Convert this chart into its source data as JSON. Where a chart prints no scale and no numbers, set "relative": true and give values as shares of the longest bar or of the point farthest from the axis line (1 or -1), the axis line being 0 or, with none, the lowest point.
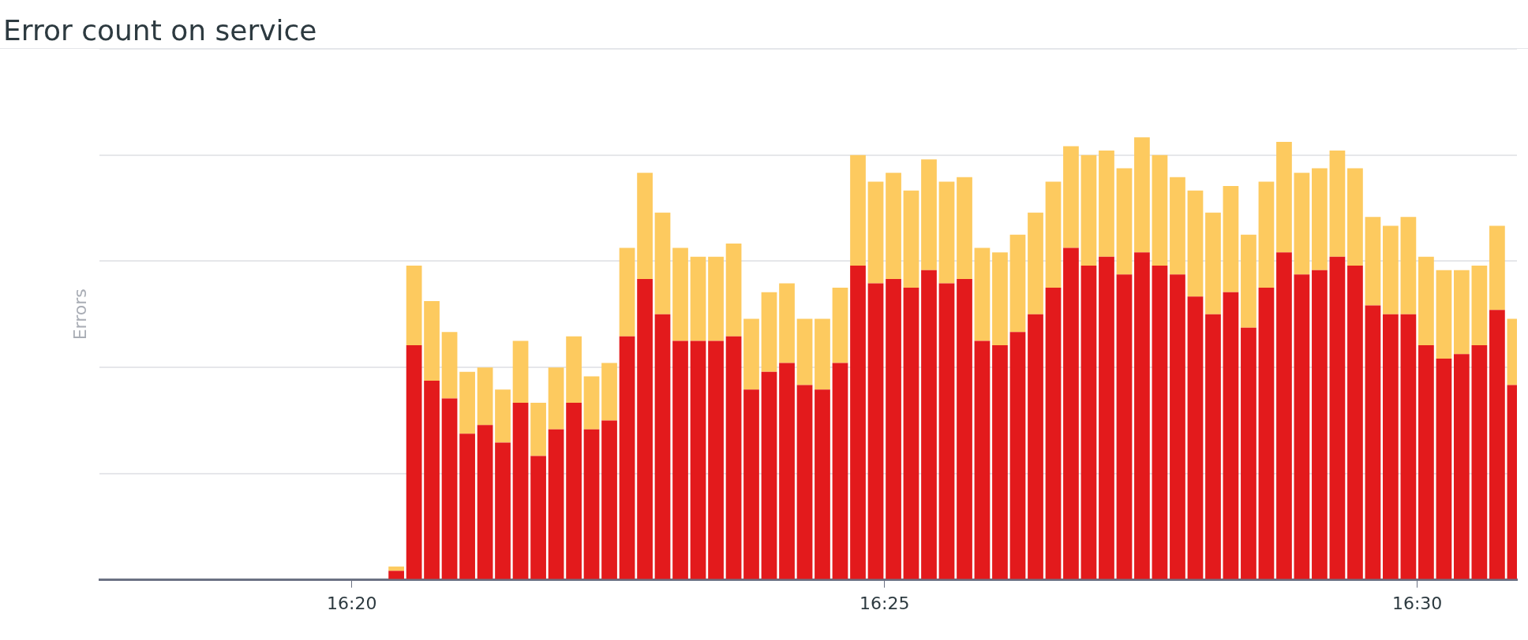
{
  "chart_data": {
    "type": "bar",
    "title": "Error count on service",
    "ylabel": "Errors",
    "relative": true,
    "stacked": true,
    "grid": "y",
    "legend": false,
    "xlim": [
      16.29389,
      16.5156
    ],
    "xticks": [
      {
        "value": 16.33333,
        "label": "16:20"
      },
      {
        "value": 16.41667,
        "label": "16:25"
      },
      {
        "value": 16.5,
        "label": "16:30"
      }
    ],
    "x": [
      16.34028,
      16.34306,
      16.34583,
      16.34861,
      16.35139,
      16.35417,
      16.35694,
      16.35972,
      16.3625,
      16.36528,
      16.36806,
      16.37083,
      16.37361,
      16.37639,
      16.37917,
      16.38194,
      16.38472,
      16.3875,
      16.39028,
      16.39306,
      16.39583,
      16.39861,
      16.40139,
      16.40417,
      16.40694,
      16.40972,
      16.4125,
      16.41528,
      16.41806,
      16.42083,
      16.42361,
      16.42639,
      16.42917,
      16.43194,
      16.43472,
      16.4375,
      16.44028,
      16.44306,
      16.44583,
      16.44861,
      16.45139,
      16.45417,
      16.45694,
      16.45972,
      16.4625,
      16.46528,
      16.46806,
      16.47083,
      16.47361,
      16.47639,
      16.47917,
      16.48194,
      16.48472,
      16.4875,
      16.49028,
      16.49306,
      16.49583,
      16.49861,
      16.50139,
      16.50417,
      16.50694,
      16.50972,
      16.5125,
      16.51528
    ],
    "series": [
      {
        "color": "#e31a1c",
        "values": [
          0.02,
          0.53,
          0.45,
          0.41,
          0.33,
          0.35,
          0.31,
          0.4,
          0.28,
          0.34,
          0.4,
          0.34,
          0.36,
          0.55,
          0.68,
          0.6,
          0.54,
          0.54,
          0.54,
          0.55,
          0.43,
          0.47,
          0.49,
          0.44,
          0.43,
          0.49,
          0.71,
          0.67,
          0.68,
          0.66,
          0.7,
          0.67,
          0.68,
          0.54,
          0.53,
          0.56,
          0.6,
          0.66,
          0.75,
          0.71,
          0.73,
          0.69,
          0.74,
          0.71,
          0.69,
          0.64,
          0.6,
          0.65,
          0.57,
          0.66,
          0.74,
          0.69,
          0.7,
          0.73,
          0.71,
          0.62,
          0.6,
          0.6,
          0.53,
          0.5,
          0.51,
          0.53,
          0.61,
          0.44
        ]
      },
      {
        "color": "#fdca5f",
        "values": [
          0.01,
          0.18,
          0.18,
          0.15,
          0.14,
          0.13,
          0.12,
          0.14,
          0.12,
          0.14,
          0.15,
          0.12,
          0.13,
          0.2,
          0.24,
          0.23,
          0.21,
          0.19,
          0.19,
          0.21,
          0.16,
          0.18,
          0.18,
          0.15,
          0.16,
          0.17,
          0.25,
          0.23,
          0.24,
          0.22,
          0.25,
          0.23,
          0.23,
          0.21,
          0.21,
          0.22,
          0.23,
          0.24,
          0.23,
          0.25,
          0.24,
          0.24,
          0.26,
          0.25,
          0.22,
          0.24,
          0.23,
          0.24,
          0.21,
          0.24,
          0.25,
          0.23,
          0.23,
          0.24,
          0.22,
          0.2,
          0.2,
          0.22,
          0.2,
          0.2,
          0.19,
          0.18,
          0.19,
          0.15
        ]
      }
    ]
  }
}
